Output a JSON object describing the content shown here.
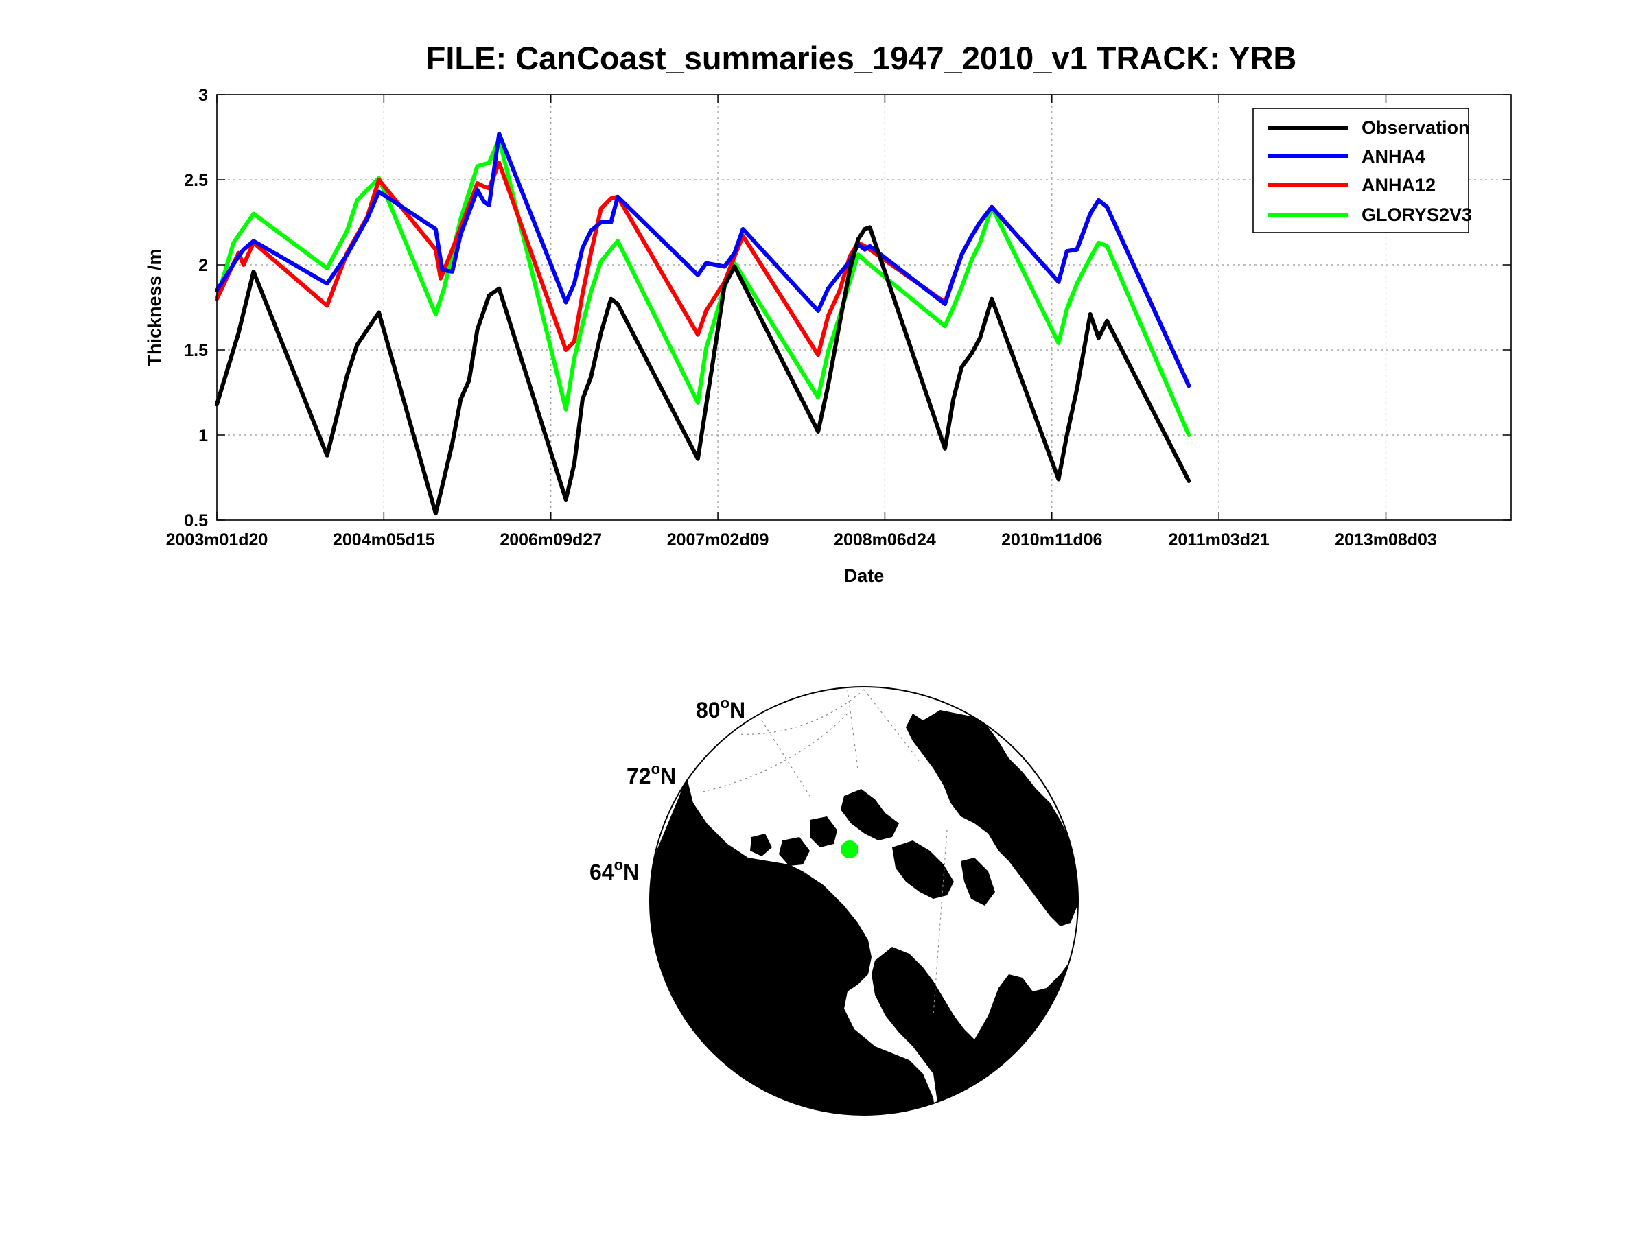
{
  "chart_data": [
    {
      "type": "line",
      "title": "FILE: CanCoast_summaries_1947_2010_v1 TRACK: YRB",
      "xlabel": "Date",
      "ylabel": "Thickness /m",
      "ylim": [
        0.5,
        3
      ],
      "xlim": [
        0,
        7.75
      ],
      "x_ticks": [
        0,
        1,
        2,
        3,
        4,
        5,
        6,
        7
      ],
      "x_tick_labels": [
        "2003m01d20",
        "2004m05d15",
        "2006m09d27",
        "2007m02d09",
        "2008m06d24",
        "2010m11d06",
        "2011m03d21",
        "2013m08d03"
      ],
      "y_ticks": [
        0.5,
        1,
        1.5,
        2,
        2.5,
        3
      ],
      "y_tick_labels": [
        "0.5",
        "1",
        "1.5",
        "2",
        "2.5",
        "3"
      ],
      "grid": true,
      "legend": "top-right",
      "series": [
        {
          "name": "Observation",
          "color": "#000000",
          "points": [
            [
              0,
              1.18
            ],
            [
              0.13,
              1.6
            ],
            [
              0.19,
              1.84
            ],
            [
              0.22,
              1.96
            ],
            [
              0.66,
              0.88
            ],
            [
              0.78,
              1.35
            ],
            [
              0.84,
              1.53
            ],
            [
              0.97,
              1.72
            ],
            [
              1.31,
              0.54
            ],
            [
              1.34,
              0.66
            ],
            [
              1.41,
              0.95
            ],
            [
              1.46,
              1.21
            ],
            [
              1.51,
              1.32
            ],
            [
              1.56,
              1.62
            ],
            [
              1.63,
              1.82
            ],
            [
              1.69,
              1.86
            ],
            [
              2.09,
              0.62
            ],
            [
              2.14,
              0.83
            ],
            [
              2.19,
              1.21
            ],
            [
              2.24,
              1.34
            ],
            [
              2.3,
              1.6
            ],
            [
              2.36,
              1.8
            ],
            [
              2.4,
              1.77
            ],
            [
              2.88,
              0.86
            ],
            [
              2.97,
              1.43
            ],
            [
              3.04,
              1.88
            ],
            [
              3.1,
              1.99
            ],
            [
              3.6,
              1.02
            ],
            [
              3.66,
              1.29
            ],
            [
              3.73,
              1.66
            ],
            [
              3.79,
              1.97
            ],
            [
              3.84,
              2.15
            ],
            [
              3.88,
              2.21
            ],
            [
              3.91,
              2.22
            ],
            [
              4.36,
              0.92
            ],
            [
              4.41,
              1.21
            ],
            [
              4.46,
              1.4
            ],
            [
              4.52,
              1.48
            ],
            [
              4.57,
              1.57
            ],
            [
              4.64,
              1.8
            ],
            [
              5.04,
              0.74
            ],
            [
              5.09,
              1.0
            ],
            [
              5.15,
              1.27
            ],
            [
              5.23,
              1.71
            ],
            [
              5.28,
              1.57
            ],
            [
              5.33,
              1.67
            ],
            [
              5.82,
              0.73
            ]
          ]
        },
        {
          "name": "ANHA4",
          "color": "#0000ff",
          "points": [
            [
              0,
              1.85
            ],
            [
              0.13,
              2.05
            ],
            [
              0.16,
              2.09
            ],
            [
              0.22,
              2.14
            ],
            [
              0.66,
              1.89
            ],
            [
              0.78,
              2.06
            ],
            [
              0.9,
              2.27
            ],
            [
              0.97,
              2.43
            ],
            [
              1.31,
              2.21
            ],
            [
              1.35,
              1.97
            ],
            [
              1.41,
              1.96
            ],
            [
              1.46,
              2.18
            ],
            [
              1.56,
              2.44
            ],
            [
              1.6,
              2.37
            ],
            [
              1.63,
              2.35
            ],
            [
              1.69,
              2.77
            ],
            [
              2.09,
              1.78
            ],
            [
              2.14,
              1.89
            ],
            [
              2.19,
              2.1
            ],
            [
              2.24,
              2.2
            ],
            [
              2.3,
              2.25
            ],
            [
              2.36,
              2.25
            ],
            [
              2.4,
              2.4
            ],
            [
              2.88,
              1.94
            ],
            [
              2.93,
              2.01
            ],
            [
              3.04,
              1.99
            ],
            [
              3.1,
              2.07
            ],
            [
              3.15,
              2.21
            ],
            [
              3.6,
              1.73
            ],
            [
              3.66,
              1.86
            ],
            [
              3.73,
              1.95
            ],
            [
              3.79,
              2.02
            ],
            [
              3.84,
              2.12
            ],
            [
              3.88,
              2.09
            ],
            [
              3.91,
              2.11
            ],
            [
              4.36,
              1.77
            ],
            [
              4.41,
              1.92
            ],
            [
              4.46,
              2.06
            ],
            [
              4.52,
              2.17
            ],
            [
              4.57,
              2.25
            ],
            [
              4.64,
              2.34
            ],
            [
              5.04,
              1.9
            ],
            [
              5.09,
              2.08
            ],
            [
              5.15,
              2.09
            ],
            [
              5.23,
              2.3
            ],
            [
              5.28,
              2.38
            ],
            [
              5.33,
              2.34
            ],
            [
              5.82,
              1.29
            ]
          ]
        },
        {
          "name": "ANHA12",
          "color": "#ff0000",
          "points": [
            [
              0,
              1.8
            ],
            [
              0.13,
              2.07
            ],
            [
              0.16,
              2.0
            ],
            [
              0.22,
              2.13
            ],
            [
              0.66,
              1.76
            ],
            [
              0.78,
              2.07
            ],
            [
              0.9,
              2.28
            ],
            [
              0.97,
              2.5
            ],
            [
              1.31,
              2.09
            ],
            [
              1.34,
              1.92
            ],
            [
              1.41,
              2.09
            ],
            [
              1.46,
              2.22
            ],
            [
              1.56,
              2.48
            ],
            [
              1.6,
              2.46
            ],
            [
              1.63,
              2.45
            ],
            [
              1.69,
              2.6
            ],
            [
              2.09,
              1.5
            ],
            [
              2.14,
              1.55
            ],
            [
              2.19,
              1.83
            ],
            [
              2.24,
              2.07
            ],
            [
              2.3,
              2.33
            ],
            [
              2.36,
              2.39
            ],
            [
              2.4,
              2.4
            ],
            [
              2.88,
              1.59
            ],
            [
              2.93,
              1.73
            ],
            [
              3.04,
              1.9
            ],
            [
              3.1,
              2.05
            ],
            [
              3.15,
              2.17
            ],
            [
              3.6,
              1.47
            ],
            [
              3.66,
              1.7
            ],
            [
              3.73,
              1.85
            ],
            [
              3.79,
              2.05
            ],
            [
              3.84,
              2.13
            ],
            [
              3.88,
              2.11
            ],
            [
              3.91,
              2.09
            ],
            [
              4.36,
              1.78
            ],
            [
              4.41,
              1.92
            ],
            [
              4.46,
              2.06
            ],
            [
              4.52,
              2.17
            ],
            [
              4.57,
              2.25
            ],
            [
              4.64,
              2.34
            ],
            [
              5.04,
              1.9
            ],
            [
              5.09,
              2.08
            ],
            [
              5.15,
              2.09
            ],
            [
              5.23,
              2.3
            ],
            [
              5.28,
              2.38
            ],
            [
              5.33,
              2.34
            ],
            [
              5.82,
              1.29
            ]
          ]
        },
        {
          "name": "GLORYS2V3",
          "color": "#00ff00",
          "points": [
            [
              0,
              1.8
            ],
            [
              0.1,
              2.13
            ],
            [
              0.22,
              2.3
            ],
            [
              0.66,
              1.98
            ],
            [
              0.78,
              2.2
            ],
            [
              0.84,
              2.38
            ],
            [
              0.97,
              2.51
            ],
            [
              1.31,
              1.71
            ],
            [
              1.36,
              1.86
            ],
            [
              1.46,
              2.27
            ],
            [
              1.56,
              2.58
            ],
            [
              1.63,
              2.6
            ],
            [
              1.69,
              2.74
            ],
            [
              2.09,
              1.15
            ],
            [
              2.14,
              1.45
            ],
            [
              2.19,
              1.65
            ],
            [
              2.24,
              1.84
            ],
            [
              2.3,
              2.02
            ],
            [
              2.4,
              2.14
            ],
            [
              2.88,
              1.19
            ],
            [
              2.93,
              1.51
            ],
            [
              3.04,
              1.87
            ],
            [
              3.1,
              2.01
            ],
            [
              3.6,
              1.22
            ],
            [
              3.66,
              1.49
            ],
            [
              3.73,
              1.7
            ],
            [
              3.79,
              1.9
            ],
            [
              3.84,
              2.06
            ],
            [
              3.91,
              2.0
            ],
            [
              4.36,
              1.64
            ],
            [
              4.41,
              1.75
            ],
            [
              4.46,
              1.87
            ],
            [
              4.52,
              2.03
            ],
            [
              4.57,
              2.13
            ],
            [
              4.64,
              2.34
            ],
            [
              5.04,
              1.54
            ],
            [
              5.09,
              1.74
            ],
            [
              5.15,
              1.89
            ],
            [
              5.23,
              2.04
            ],
            [
              5.28,
              2.13
            ],
            [
              5.33,
              2.11
            ],
            [
              5.82,
              1.0
            ]
          ]
        }
      ]
    }
  ],
  "map": {
    "lat_labels": [
      "80",
      "72",
      "64"
    ],
    "lat_suffix": "N",
    "degree_mark": "o",
    "land_color": "#000000",
    "ocean_color": "#ffffff",
    "marker_color": "#00ff00",
    "marker_icon": "station-marker-dot"
  }
}
